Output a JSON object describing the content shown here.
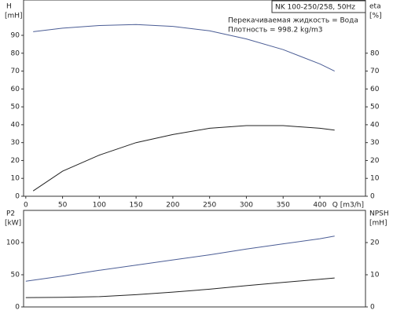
{
  "chart_data": [
    {
      "type": "line",
      "ylabel": "H",
      "yunit": "[mH]",
      "y2label": "eta",
      "y2unit": "[%]",
      "xlabel": "Q [m3/h]",
      "annotations": [
        "NK 100-250/258, 50Hz",
        "Перекачиваемая жидкость = Вода",
        "Плотность = 998.2 kg/m3"
      ],
      "x": [
        10,
        50,
        100,
        150,
        200,
        250,
        300,
        350,
        400,
        420
      ],
      "series": [
        {
          "name": "H",
          "color": "#4b5d95",
          "values": [
            92,
            94,
            95.5,
            96,
            95,
            92.5,
            88,
            82,
            74,
            70
          ]
        },
        {
          "name": "eta",
          "color": "#222222",
          "axis": "y2",
          "values": [
            3,
            14,
            23,
            30,
            34.5,
            38,
            39.5,
            39.5,
            38,
            37
          ]
        }
      ],
      "xlim": [
        -3,
        462
      ],
      "xticks": [
        0,
        50,
        100,
        150,
        200,
        250,
        300,
        350,
        400
      ],
      "ylim": [
        0,
        108
      ],
      "yticks": [
        0,
        10,
        20,
        30,
        40,
        50,
        60,
        70,
        80,
        90
      ],
      "y2lim": [
        0,
        108
      ],
      "y2ticks": [
        0,
        10,
        20,
        30,
        40,
        50,
        60,
        70,
        80
      ]
    },
    {
      "type": "line",
      "ylabel": "P2",
      "yunit": "[kW]",
      "y2label": "NPSH",
      "y2unit": "[mH]",
      "x": [
        0,
        50,
        100,
        150,
        200,
        250,
        300,
        350,
        400,
        420
      ],
      "series": [
        {
          "name": "P2",
          "color": "#4b5d95",
          "values": [
            40,
            48,
            57,
            65,
            73,
            81,
            90,
            98,
            106,
            110
          ]
        },
        {
          "name": "NPSH",
          "color": "#222222",
          "axis": "y2",
          "values": [
            2.9,
            3.0,
            3.2,
            3.8,
            4.6,
            5.5,
            6.6,
            7.6,
            8.6,
            9.0
          ]
        }
      ],
      "xlim": [
        -3,
        462
      ],
      "ylim": [
        0,
        150
      ],
      "yticks": [
        0,
        50,
        100
      ],
      "y2lim": [
        0,
        30
      ],
      "y2ticks": [
        0,
        10,
        20
      ]
    }
  ]
}
